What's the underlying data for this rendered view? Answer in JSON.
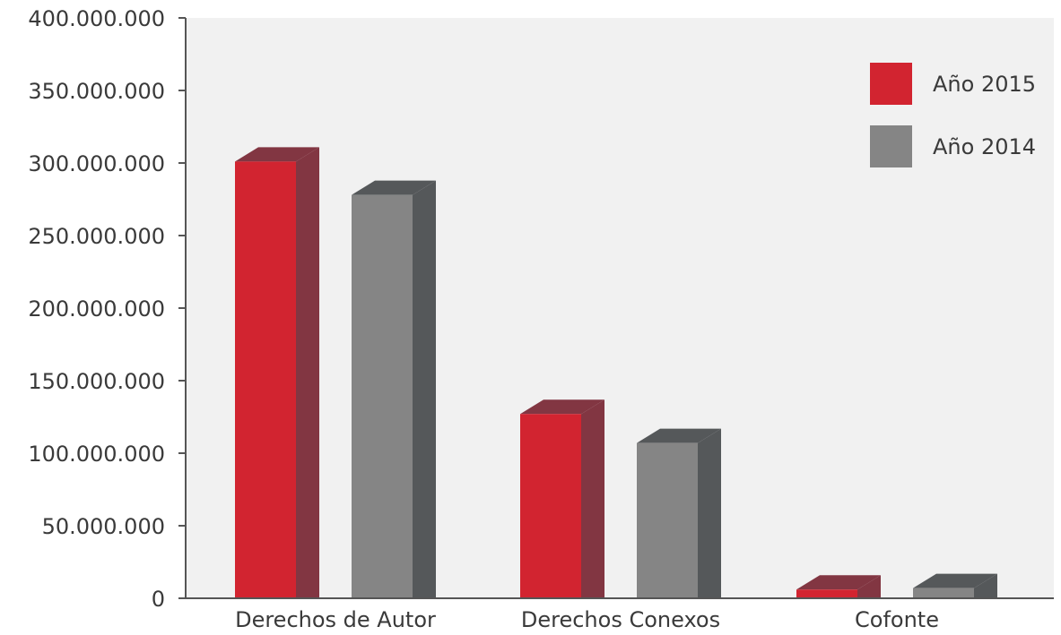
{
  "chart_data": {
    "type": "bar",
    "title": "",
    "xlabel": "",
    "ylabel": "",
    "categories": [
      "Derechos de Autor",
      "Derechos Conexos",
      "Cofonte"
    ],
    "series": [
      {
        "name": "Año 2015",
        "values": [
          301000000,
          127000000,
          6000000
        ],
        "color": "#d22430",
        "side_color": "#823642"
      },
      {
        "name": "Año 2014",
        "values": [
          278000000,
          107000000,
          7000000
        ],
        "color": "#858585",
        "side_color": "#55585a"
      }
    ],
    "ylim": [
      0,
      400000000
    ],
    "y_ticks": [
      0,
      50000000,
      100000000,
      150000000,
      200000000,
      250000000,
      300000000,
      350000000,
      400000000
    ],
    "y_tick_labels": [
      "0",
      "50.000.000",
      "100.000.000",
      "150.000.000",
      "200.000.000",
      "250.000.000",
      "300.000.000",
      "350.000.000",
      "400.000.000"
    ],
    "legend_position": "top-right",
    "grid": false,
    "style": "3d-bars",
    "plot_background": "#f1f1f1",
    "axis_color": "#555555"
  }
}
